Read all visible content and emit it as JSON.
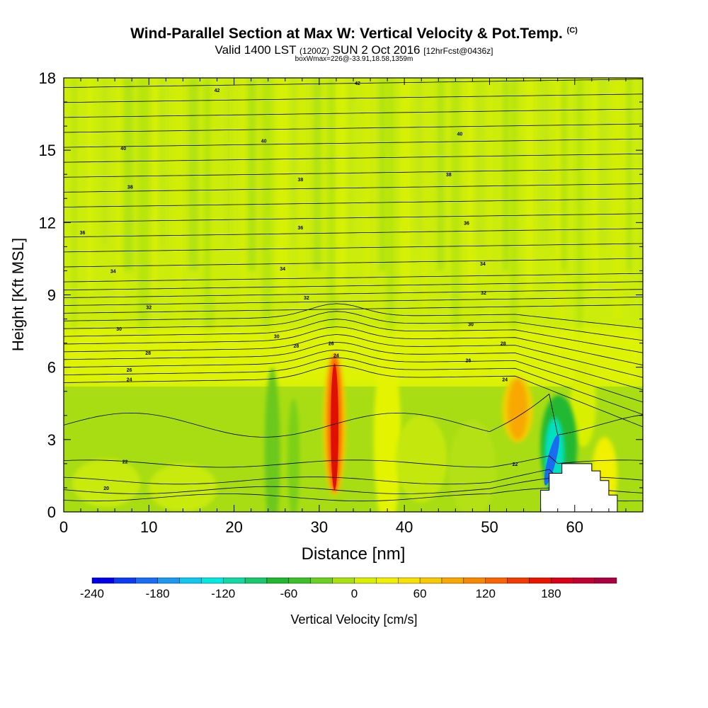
{
  "title": {
    "main": "Wind-Parallel Section at Max W: Vertical Velocity & Pot.Temp.",
    "copyright": "(C)",
    "valid_prefix": "Valid 1400 LST",
    "valid_utc": "(1200Z)",
    "valid_date": "SUN 2 Oct 2016",
    "forecast": "[12hrFcst@0436z]",
    "boxmax": "boxWmax=226@-33.91,18.58,1359m"
  },
  "chart_data": {
    "type": "heatmap",
    "xlabel": "Distance [nm]",
    "ylabel": "Height [Kft MSL]",
    "xlim": [
      0,
      68
    ],
    "ylim": [
      0,
      18
    ],
    "xticks": [
      0,
      10,
      20,
      30,
      40,
      50,
      60
    ],
    "yticks": [
      0,
      3,
      6,
      9,
      12,
      15,
      18
    ],
    "colorbar": {
      "label": "Vertical Velocity [cm/s]",
      "min": -240,
      "max": 240,
      "step": 20,
      "tick_labels": [
        -240,
        -180,
        -120,
        -60,
        0,
        60,
        120,
        180
      ],
      "colors": [
        "#0000e8",
        "#0d3cf0",
        "#1a6cf0",
        "#1c98f0",
        "#10c8f0",
        "#00e8e0",
        "#14d8a4",
        "#18c86c",
        "#20b830",
        "#3cc028",
        "#6cd020",
        "#a8e010",
        "#d8f000",
        "#f0f000",
        "#f8e000",
        "#f8c800",
        "#f8a800",
        "#f88800",
        "#f86400",
        "#f03c00",
        "#e81400",
        "#d80018",
        "#c00030",
        "#a80040"
      ]
    },
    "background_color": "#ccec0c",
    "velocity_features": [
      {
        "name": "updraft-core",
        "x": 31.8,
        "y_bottom": 0.8,
        "y_top": 6.5,
        "max_w": 226
      },
      {
        "name": "updraft-secondary",
        "x": 53.3,
        "y_bottom": 3.0,
        "y_top": 5.5,
        "max_w": 80
      },
      {
        "name": "downdraft-lee",
        "x": 57.3,
        "y_bottom": 0.8,
        "y_top": 3.5,
        "min_w": -230
      }
    ],
    "terrain": [
      [
        56,
        0
      ],
      [
        56,
        0.9
      ],
      [
        57,
        0.9
      ],
      [
        57,
        1.6
      ],
      [
        58.5,
        1.6
      ],
      [
        58.5,
        2.0
      ],
      [
        62,
        2.0
      ],
      [
        62,
        1.7
      ],
      [
        63,
        1.7
      ],
      [
        63,
        1.3
      ],
      [
        64,
        1.3
      ],
      [
        64,
        0.7
      ],
      [
        65,
        0.7
      ],
      [
        65,
        0
      ]
    ],
    "theta_contour_labels": [
      {
        "text": "42",
        "x": 18,
        "y": 17.5
      },
      {
        "text": "42",
        "x": 34.5,
        "y": 17.8
      },
      {
        "text": "40",
        "x": 7,
        "y": 15.1
      },
      {
        "text": "40",
        "x": 23.5,
        "y": 15.4
      },
      {
        "text": "40",
        "x": 46.5,
        "y": 15.7
      },
      {
        "text": "38",
        "x": 7.8,
        "y": 13.5
      },
      {
        "text": "38",
        "x": 27.8,
        "y": 13.8
      },
      {
        "text": "38",
        "x": 45.2,
        "y": 14.0
      },
      {
        "text": "36",
        "x": 2.2,
        "y": 11.6
      },
      {
        "text": "36",
        "x": 27.8,
        "y": 11.8
      },
      {
        "text": "36",
        "x": 47.3,
        "y": 12.0
      },
      {
        "text": "34",
        "x": 5.8,
        "y": 10.0
      },
      {
        "text": "34",
        "x": 25.7,
        "y": 10.1
      },
      {
        "text": "34",
        "x": 49.2,
        "y": 10.3
      },
      {
        "text": "32",
        "x": 10,
        "y": 8.5
      },
      {
        "text": "32",
        "x": 28.5,
        "y": 8.9
      },
      {
        "text": "32",
        "x": 49.3,
        "y": 9.1
      },
      {
        "text": "30",
        "x": 6.5,
        "y": 7.6
      },
      {
        "text": "30",
        "x": 25,
        "y": 7.3
      },
      {
        "text": "30",
        "x": 47.8,
        "y": 7.8
      },
      {
        "text": "28",
        "x": 9.9,
        "y": 6.6
      },
      {
        "text": "28",
        "x": 27.3,
        "y": 6.9
      },
      {
        "text": "28",
        "x": 51.6,
        "y": 7.0
      },
      {
        "text": "26",
        "x": 7.7,
        "y": 5.9
      },
      {
        "text": "26",
        "x": 31.4,
        "y": 7.0
      },
      {
        "text": "26",
        "x": 47.5,
        "y": 6.3
      },
      {
        "text": "24",
        "x": 7.7,
        "y": 5.5
      },
      {
        "text": "24",
        "x": 32,
        "y": 6.5
      },
      {
        "text": "24",
        "x": 51.8,
        "y": 5.5
      },
      {
        "text": "22",
        "x": 7.2,
        "y": 2.1
      },
      {
        "text": "22",
        "x": 53,
        "y": 2.0
      },
      {
        "text": "20",
        "x": 5,
        "y": 1.0
      }
    ]
  }
}
